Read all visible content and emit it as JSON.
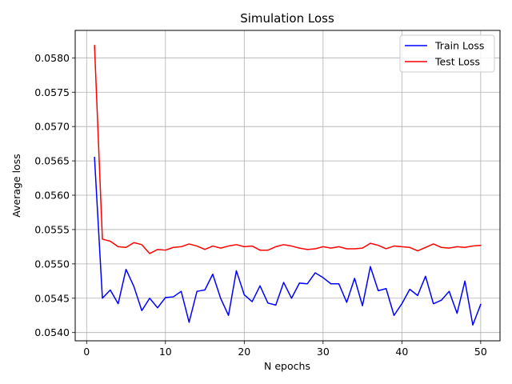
{
  "chart_data": {
    "type": "line",
    "title": "Simulation Loss",
    "xlabel": "N epochs",
    "ylabel": "Average loss",
    "xlim": [
      -1.45,
      52.45
    ],
    "ylim": [
      0.05388,
      0.0584
    ],
    "xticks": [
      0,
      10,
      20,
      30,
      40,
      50
    ],
    "yticks": [
      0.054,
      0.0545,
      0.055,
      0.0555,
      0.056,
      0.0565,
      0.057,
      0.0575,
      0.058
    ],
    "grid": true,
    "legend_position": "top-right",
    "x": [
      1,
      2,
      3,
      4,
      5,
      6,
      7,
      8,
      9,
      10,
      11,
      12,
      13,
      14,
      15,
      16,
      17,
      18,
      19,
      20,
      21,
      22,
      23,
      24,
      25,
      26,
      27,
      28,
      29,
      30,
      31,
      32,
      33,
      34,
      35,
      36,
      37,
      38,
      39,
      40,
      41,
      42,
      43,
      44,
      45,
      46,
      47,
      48,
      49,
      50
    ],
    "series": [
      {
        "name": "Train Loss",
        "color": "#0000ff",
        "values": [
          0.05655,
          0.0545,
          0.05462,
          0.05442,
          0.05492,
          0.05467,
          0.05432,
          0.0545,
          0.05436,
          0.05451,
          0.05452,
          0.0546,
          0.05415,
          0.0546,
          0.05462,
          0.05485,
          0.0545,
          0.05425,
          0.0549,
          0.05455,
          0.05445,
          0.05468,
          0.05443,
          0.0544,
          0.05473,
          0.0545,
          0.05472,
          0.05471,
          0.05487,
          0.0548,
          0.05471,
          0.05471,
          0.05444,
          0.05479,
          0.05439,
          0.05496,
          0.05461,
          0.05464,
          0.05425,
          0.05442,
          0.05463,
          0.05454,
          0.05482,
          0.05442,
          0.05447,
          0.0546,
          0.05428,
          0.05475,
          0.05411,
          0.05441
        ]
      },
      {
        "name": "Test Loss",
        "color": "#ff0000",
        "values": [
          0.05818,
          0.05536,
          0.05533,
          0.05525,
          0.05524,
          0.05531,
          0.05528,
          0.05515,
          0.05521,
          0.0552,
          0.05524,
          0.05525,
          0.05529,
          0.05526,
          0.05521,
          0.05526,
          0.05523,
          0.05526,
          0.05528,
          0.05525,
          0.05526,
          0.0552,
          0.0552,
          0.05525,
          0.05528,
          0.05526,
          0.05523,
          0.05521,
          0.05522,
          0.05525,
          0.05523,
          0.05525,
          0.05522,
          0.05522,
          0.05523,
          0.0553,
          0.05527,
          0.05522,
          0.05526,
          0.05525,
          0.05524,
          0.05519,
          0.05524,
          0.05529,
          0.05524,
          0.05523,
          0.05525,
          0.05524,
          0.05526,
          0.05527
        ]
      }
    ]
  }
}
